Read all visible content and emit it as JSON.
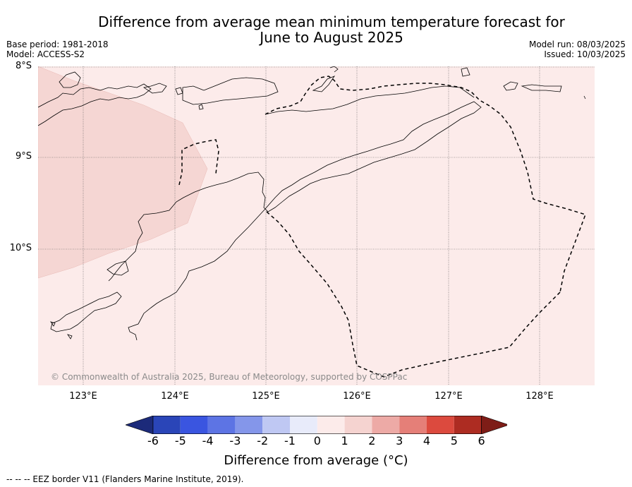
{
  "title_line1": "Difference from average mean minimum temperature forecast for",
  "title_line2": "June to August 2025",
  "base_period": "Base period: 1981-2018",
  "model": "Model: ACCESS-S2",
  "model_run": "Model run: 08/03/2025",
  "issued": "Issued: 10/03/2025",
  "lat_labels": [
    "8°S",
    "9°S",
    "10°S"
  ],
  "lon_labels": [
    "123°E",
    "124°E",
    "125°E",
    "126°E",
    "127°E",
    "128°E"
  ],
  "copyright": "© Commonwealth of Australia 2025, Bureau of Meteorology, supported by COSPPac",
  "colorbar": {
    "label": "Difference from average (°C)",
    "ticks": [
      "-6",
      "-5",
      "-4",
      "-3",
      "-2",
      "-1",
      "0",
      "1",
      "2",
      "3",
      "4",
      "5",
      "6"
    ],
    "colors": [
      "#1c2a7a",
      "#2a45b8",
      "#3a55e0",
      "#5d74e4",
      "#8496ea",
      "#bfc8f3",
      "#e8ebfa",
      "#fcebea",
      "#f5d3d0",
      "#edaaa6",
      "#e57f78",
      "#dc4a3e",
      "#ad2c22",
      "#7e1d17"
    ]
  },
  "fill_colors": {
    "zone_0_1": "#fcebea",
    "zone_1_2": "#f5d6d3"
  },
  "eez_note": "--  --  -- EEZ border V11 (Flanders Marine Institute, 2019)."
}
